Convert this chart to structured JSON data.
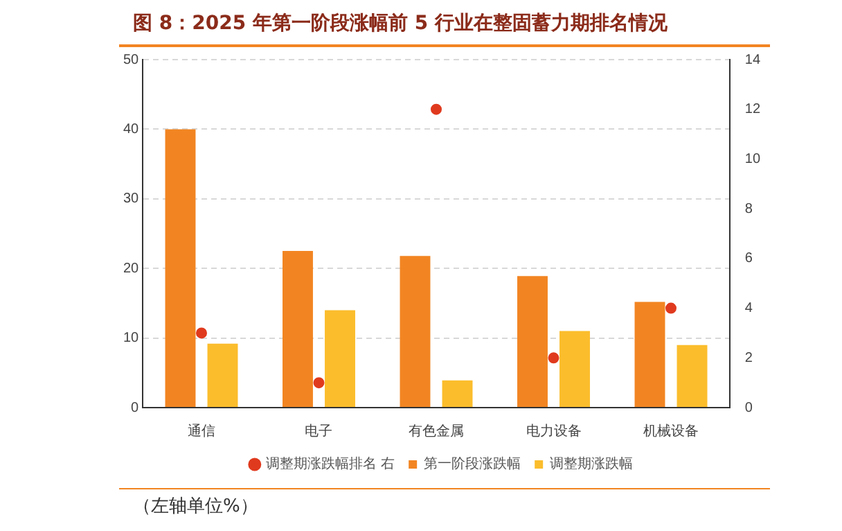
{
  "chart_data": {
    "type": "bar",
    "title": "图 8：2025 年第一阶段涨幅前 5 行业在整固蓄力期排名情况",
    "categories": [
      "通信",
      "电子",
      "有色金属",
      "电力设备",
      "机械设备"
    ],
    "series": [
      {
        "name": "第一阶段涨跌幅",
        "color": "#f28522",
        "values": [
          40,
          22.5,
          21.8,
          18.9,
          15.2
        ]
      },
      {
        "name": "调整期涨跌幅",
        "color": "#fbbd2c",
        "values": [
          9.2,
          14,
          3.9,
          11,
          9
        ]
      },
      {
        "name": "调整期涨跌幅排名 右",
        "type": "scatter",
        "axis": "y2",
        "color": "#e03a1e",
        "x": [
          "通信",
          "电子",
          "有色金属",
          "电力设备",
          "机械设备"
        ],
        "values": [
          3,
          1,
          12,
          2,
          4
        ]
      }
    ],
    "ylim": [
      0,
      50
    ],
    "yticks": [
      0,
      10,
      20,
      30,
      40,
      50
    ],
    "y2lim": [
      0,
      14
    ],
    "y2ticks": [
      0,
      2,
      4,
      6,
      8,
      10,
      12,
      14
    ],
    "grid": "y",
    "legend": "bottom",
    "marker": "circle",
    "annotations": [
      "（左轴单位%）"
    ]
  }
}
